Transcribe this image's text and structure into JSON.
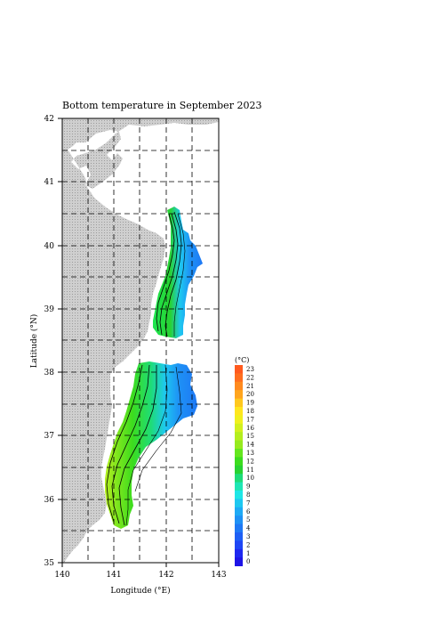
{
  "map": {
    "title": "Bottom temperature in September 2023",
    "xlabel": "Longitude (°E)",
    "ylabel": "Latitude (°N)",
    "lon_ticks": [
      "140",
      "141",
      "142",
      "143"
    ],
    "lat_ticks": [
      "35",
      "36",
      "37",
      "38",
      "39",
      "40",
      "41",
      "42"
    ],
    "lon_range": [
      140,
      143
    ],
    "lat_range": [
      35,
      42
    ],
    "grid": "dashed, every 0.5 degree",
    "land_color": "#c8c8c8",
    "region": "Pacific coast of Tohoku, Japan"
  },
  "colorbar": {
    "unit": "(°C)",
    "labels": [
      "23",
      "22",
      "21",
      "20",
      "19",
      "18",
      "17",
      "16",
      "15",
      "14",
      "13",
      "12",
      "11",
      "10",
      "9",
      "8",
      "7",
      "6",
      "5",
      "4",
      "3",
      "2",
      "1",
      "0"
    ],
    "colors": [
      "#ff5a1e",
      "#ff6e1e",
      "#ff8a1e",
      "#ffa51e",
      "#ffc81e",
      "#ffe61e",
      "#f0f01e",
      "#d2f01e",
      "#b4ee1e",
      "#96ea1e",
      "#64e61e",
      "#3cdc1e",
      "#28d232",
      "#1edc78",
      "#1ee6b4",
      "#1ee6e6",
      "#1ec8f0",
      "#1eaaf5",
      "#1e91f5",
      "#1e78f5",
      "#1e5ff5",
      "#1e46f5",
      "#1e28f0",
      "#1e14e6"
    ]
  }
}
